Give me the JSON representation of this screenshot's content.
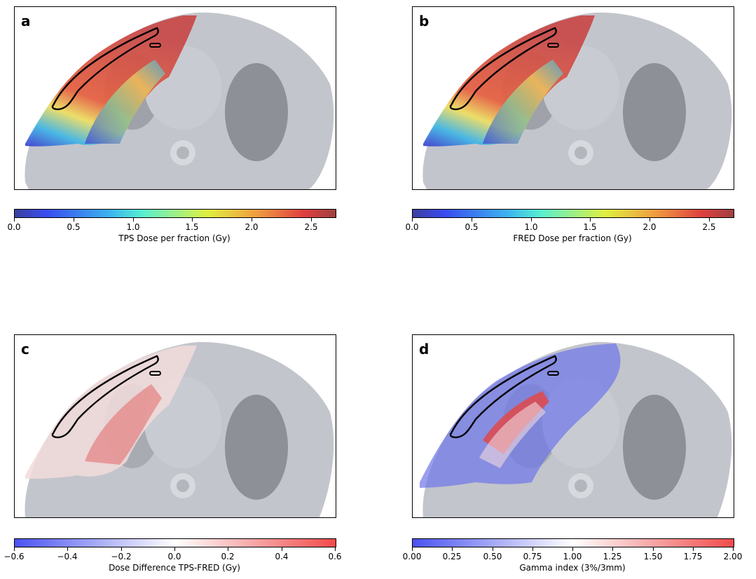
{
  "panels": [
    {
      "letter": "a",
      "label": "TPS Dose per fraction (Gy)",
      "ticks": [
        "0.0",
        "0.5",
        "1.0",
        "1.5",
        "2.0",
        "2.5"
      ],
      "tick_values": [
        0,
        0.5,
        1.0,
        1.5,
        2.0,
        2.5
      ],
      "range": [
        0,
        2.7
      ],
      "colormap": "jet"
    },
    {
      "letter": "b",
      "label": "FRED Dose per fraction (Gy)",
      "ticks": [
        "0.0",
        "0.5",
        "1.0",
        "1.5",
        "2.0",
        "2.5"
      ],
      "tick_values": [
        0,
        0.5,
        1.0,
        1.5,
        2.0,
        2.5
      ],
      "range": [
        0,
        2.7
      ],
      "colormap": "jet"
    },
    {
      "letter": "c",
      "label": "Dose Difference TPS-FRED (Gy)",
      "ticks": [
        "−0.6",
        "−0.4",
        "−0.2",
        "0.0",
        "0.2",
        "0.4",
        "0.6"
      ],
      "tick_values": [
        -0.6,
        -0.4,
        -0.2,
        0,
        0.2,
        0.4,
        0.6
      ],
      "range": [
        -0.6,
        0.6
      ],
      "colormap": "bwr"
    },
    {
      "letter": "d",
      "label": "Gamma index (3%/3mm)",
      "ticks": [
        "0.00",
        "0.25",
        "0.50",
        "0.75",
        "1.00",
        "1.25",
        "1.50",
        "1.75",
        "2.00"
      ],
      "tick_values": [
        0,
        0.25,
        0.5,
        0.75,
        1.0,
        1.25,
        1.5,
        1.75,
        2.0
      ],
      "range": [
        0,
        2.0
      ],
      "colormap": "bwr"
    }
  ]
}
